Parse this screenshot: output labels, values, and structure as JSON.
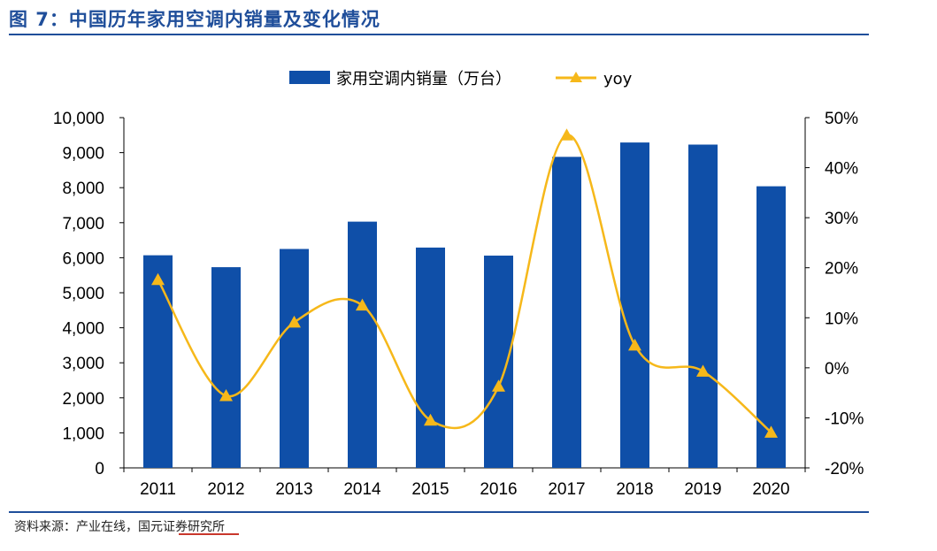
{
  "header": {
    "title": "图 7：中国历年家用空调内销量及变化情况"
  },
  "footer": {
    "source": "资料来源：产业在线，国元证券研究所"
  },
  "colors": {
    "bar": "#0f4fa8",
    "line": "#f6b81a",
    "rule": "#1f4e9a"
  },
  "chart_data": {
    "type": "bar",
    "categories": [
      "2011",
      "2012",
      "2013",
      "2014",
      "2015",
      "2016",
      "2017",
      "2018",
      "2019",
      "2020"
    ],
    "series": [
      {
        "name": "家用空调内销量（万台）",
        "type": "bar",
        "axis": "left",
        "values": [
          6070,
          5730,
          6250,
          7030,
          6290,
          6060,
          8880,
          9290,
          9230,
          8040
        ]
      },
      {
        "name": "yoy",
        "type": "line",
        "axis": "right",
        "values": [
          17.6,
          -5.6,
          9.1,
          12.5,
          -10.5,
          -3.7,
          46.5,
          4.5,
          -0.7,
          -12.9
        ]
      }
    ],
    "ylim_left": [
      0,
      10000
    ],
    "yticks_left": [
      "0",
      "1,000",
      "2,000",
      "3,000",
      "4,000",
      "5,000",
      "6,000",
      "7,000",
      "8,000",
      "9,000",
      "10,000"
    ],
    "ylim_right": [
      -20,
      50
    ],
    "yticks_right": [
      "-20%",
      "-10%",
      "0%",
      "10%",
      "20%",
      "30%",
      "40%",
      "50%"
    ],
    "legend": "top-center",
    "grid": false
  }
}
